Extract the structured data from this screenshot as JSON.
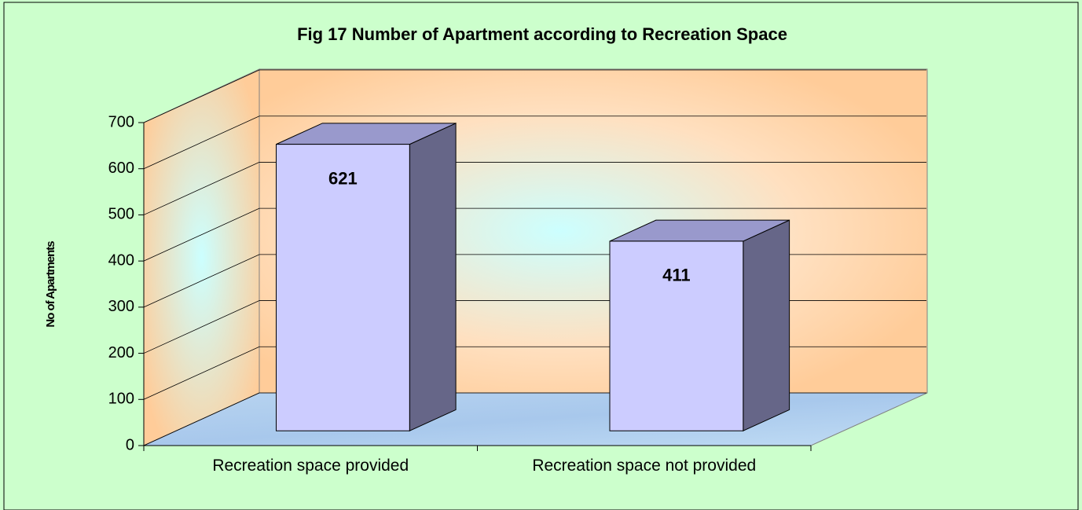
{
  "chart_data": {
    "type": "bar3d",
    "title": "Fig 17  Number of Apartment according to Recreation Space",
    "y_label": "No of Apartments",
    "categories": [
      "Recreation space provided",
      "Recreation space not provided"
    ],
    "values": [
      621,
      411
    ],
    "color": "#ccccff",
    "ylim": [
      0,
      700
    ],
    "yticks": [
      0,
      100,
      200,
      300,
      400,
      500,
      600,
      700
    ],
    "grid": true
  }
}
